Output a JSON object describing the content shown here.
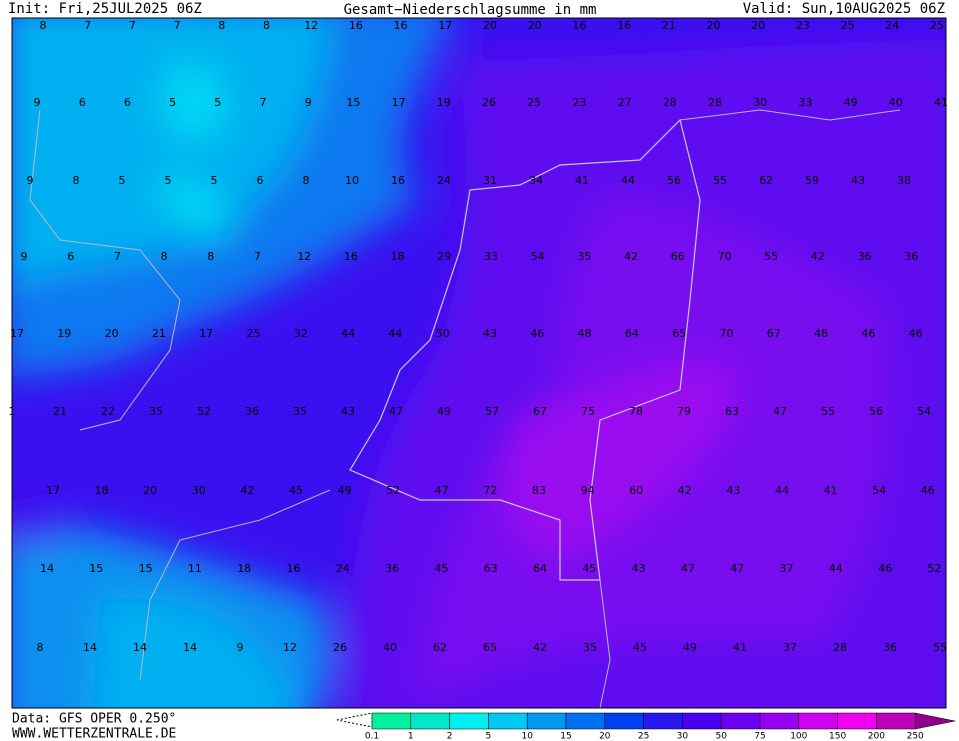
{
  "header": {
    "init": "Init: Fri,25JUL2025 06Z",
    "title": "Gesamt−Niederschlagsumme in mm",
    "valid": "Valid: Sun,10AUG2025 06Z"
  },
  "footer": {
    "data": "Data: GFS OPER 0.250°",
    "site": "WWW.WETTERZENTRALE.DE"
  },
  "grid": {
    "rows": [
      [
        8,
        7,
        7,
        7,
        8,
        8,
        12,
        16,
        16,
        17,
        20,
        20,
        16,
        16,
        21,
        20,
        20,
        23,
        25,
        24,
        25
      ],
      [
        9,
        6,
        6,
        5,
        5,
        7,
        9,
        15,
        17,
        19,
        26,
        25,
        23,
        27,
        28,
        28,
        30,
        33,
        49,
        40,
        41
      ],
      [
        9,
        8,
        5,
        5,
        5,
        6,
        8,
        10,
        16,
        24,
        31,
        34,
        41,
        44,
        56,
        55,
        62,
        59,
        43,
        38
      ],
      [
        9,
        6,
        7,
        8,
        8,
        7,
        12,
        16,
        18,
        29,
        33,
        54,
        35,
        42,
        66,
        70,
        55,
        42,
        36,
        36
      ],
      [
        17,
        19,
        20,
        21,
        17,
        25,
        32,
        44,
        44,
        50,
        43,
        46,
        48,
        64,
        65,
        70,
        67,
        48,
        46,
        46
      ],
      [
        1,
        21,
        22,
        35,
        52,
        36,
        35,
        43,
        47,
        49,
        57,
        67,
        75,
        78,
        79,
        63,
        47,
        55,
        56,
        54
      ],
      [
        17,
        18,
        20,
        30,
        42,
        45,
        49,
        52,
        47,
        72,
        83,
        94,
        60,
        42,
        43,
        44,
        41,
        54,
        46
      ],
      [
        14,
        15,
        15,
        11,
        18,
        16,
        24,
        36,
        45,
        63,
        64,
        45,
        43,
        47,
        47,
        37,
        44,
        46,
        52
      ],
      [
        8,
        14,
        14,
        14,
        9,
        12,
        26,
        40,
        62,
        65,
        42,
        35,
        45,
        49,
        41,
        37,
        28,
        36,
        55
      ]
    ]
  },
  "legend": {
    "labels": [
      0.1,
      1,
      2,
      5,
      10,
      15,
      20,
      25,
      30,
      50,
      75,
      100,
      150,
      200,
      250
    ],
    "colors": [
      "#00f0a0",
      "#00e8c8",
      "#00f0f0",
      "#00c8f0",
      "#0098f0",
      "#0070f0",
      "#0040f0",
      "#2818f0",
      "#4800f0",
      "#6c00f0",
      "#9800f0",
      "#d000f0",
      "#f000f0",
      "#c000b8",
      "#90008c"
    ]
  }
}
